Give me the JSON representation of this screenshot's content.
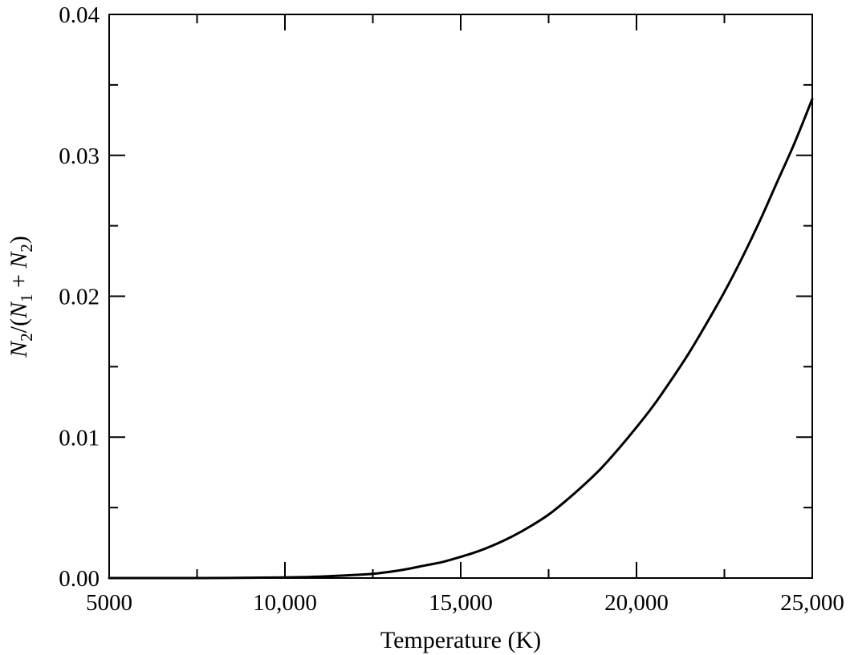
{
  "chart_data": {
    "type": "line",
    "title": "",
    "xlabel": "Temperature (K)",
    "ylabel": {
      "parts": [
        {
          "text": "N",
          "italic": true
        },
        {
          "text": "2",
          "sub": true
        },
        {
          "text": "/("
        },
        {
          "text": "N",
          "italic": true
        },
        {
          "text": "1",
          "sub": true
        },
        {
          "text": " + "
        },
        {
          "text": "N",
          "italic": true
        },
        {
          "text": "2",
          "sub": true
        },
        {
          "text": ")"
        }
      ]
    },
    "xlim": [
      5000,
      25000
    ],
    "ylim": [
      0,
      0.04
    ],
    "xticks": [
      {
        "value": 5000,
        "label": "5000"
      },
      {
        "value": 10000,
        "label": "10,000"
      },
      {
        "value": 15000,
        "label": "15,000"
      },
      {
        "value": 20000,
        "label": "20,000"
      },
      {
        "value": 25000,
        "label": "25,000"
      }
    ],
    "xminor": [
      7500,
      12500,
      17500,
      22500
    ],
    "yticks": [
      {
        "value": 0.0,
        "label": "0.00"
      },
      {
        "value": 0.01,
        "label": "0.01"
      },
      {
        "value": 0.02,
        "label": "0.02"
      },
      {
        "value": 0.03,
        "label": "0.03"
      },
      {
        "value": 0.04,
        "label": "0.04"
      }
    ],
    "yminor": [
      0.005,
      0.015,
      0.025,
      0.035
    ],
    "grid": false,
    "series": [
      {
        "color": "#000000",
        "x": [
          5000,
          7500,
          10000,
          11000,
          12000,
          12500,
          13000,
          13500,
          14000,
          14500,
          15000,
          15500,
          16000,
          16500,
          17000,
          17500,
          18000,
          18500,
          19000,
          19500,
          20000,
          20500,
          21000,
          21500,
          22000,
          22500,
          23000,
          23500,
          24000,
          24500,
          25000
        ],
        "y": [
          0.0,
          0.0,
          4e-05,
          0.0001,
          0.00022,
          0.0003,
          0.00045,
          0.00065,
          0.0009,
          0.00115,
          0.0015,
          0.0019,
          0.0024,
          0.003,
          0.0037,
          0.0045,
          0.0055,
          0.0066,
          0.0078,
          0.0092,
          0.0107,
          0.0123,
          0.0141,
          0.016,
          0.0181,
          0.0203,
          0.0227,
          0.0253,
          0.0281,
          0.0309,
          0.034
        ]
      }
    ]
  }
}
